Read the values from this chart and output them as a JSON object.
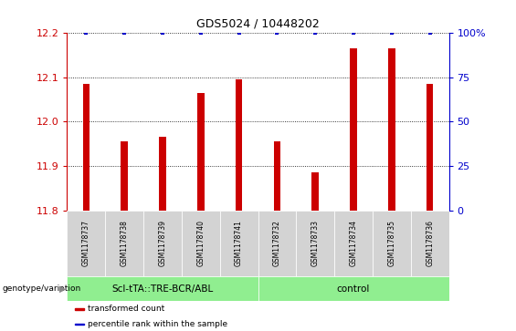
{
  "title": "GDS5024 / 10448202",
  "samples": [
    "GSM1178737",
    "GSM1178738",
    "GSM1178739",
    "GSM1178740",
    "GSM1178741",
    "GSM1178732",
    "GSM1178733",
    "GSM1178734",
    "GSM1178735",
    "GSM1178736"
  ],
  "transformed_counts": [
    12.085,
    11.955,
    11.965,
    12.065,
    12.095,
    11.955,
    11.885,
    12.165,
    12.165,
    12.085
  ],
  "percentile_ranks": [
    100,
    100,
    100,
    100,
    100,
    100,
    100,
    100,
    100,
    100
  ],
  "ylim_left": [
    11.8,
    12.2
  ],
  "ylim_right": [
    0,
    100
  ],
  "yticks_left": [
    11.8,
    11.9,
    12.0,
    12.1,
    12.2
  ],
  "yticks_right": [
    0,
    25,
    50,
    75,
    100
  ],
  "ytick_labels_right": [
    "0",
    "25",
    "50",
    "75",
    "100%"
  ],
  "groups": [
    {
      "label": "ScI-tTA::TRE-BCR/ABL",
      "indices": [
        0,
        1,
        2,
        3,
        4
      ],
      "color": "#90EE90"
    },
    {
      "label": "control",
      "indices": [
        5,
        6,
        7,
        8,
        9
      ],
      "color": "#90EE90"
    }
  ],
  "bar_color": "#CC0000",
  "dot_color": "#0000CC",
  "bar_width": 0.18,
  "legend_items": [
    {
      "color": "#CC0000",
      "label": "transformed count"
    },
    {
      "color": "#0000CC",
      "label": "percentile rank within the sample"
    }
  ],
  "genotype_label": "genotype/variation",
  "left_ytick_color": "#CC0000",
  "right_ytick_color": "#0000CC",
  "xtick_bg": "#d3d3d3",
  "group_bg": "#90EE90"
}
